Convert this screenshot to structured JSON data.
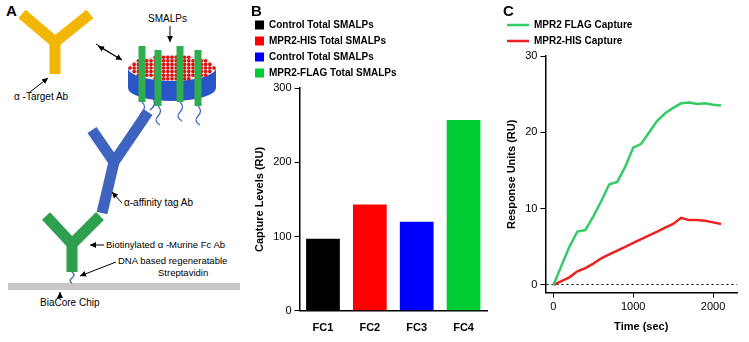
{
  "diagram": {
    "panel": "A",
    "labels": {
      "target_ab": "α -Target Ab",
      "smalps": "SMALPs",
      "affinity_ab": "α-affinity tag Ab",
      "murine_ab": "Biotinylated α -Murine Fc Ab",
      "streptavidin": [
        "DNA based regeneratable",
        "Streptavidin"
      ],
      "chip": "BiaCore Chip"
    }
  },
  "chart_data": [
    {
      "panel": "B",
      "type": "bar",
      "categories": [
        "FC1",
        "FC2",
        "FC3",
        "FC4"
      ],
      "series": [
        {
          "name": "Control Total SMALPs",
          "color": "#000000",
          "values": [
            97,
            null,
            null,
            null
          ]
        },
        {
          "name": "MPR2-HIS Total SMALPs",
          "color": "#ff0000",
          "values": [
            null,
            143,
            null,
            null
          ]
        },
        {
          "name": "Control Total SMALPs",
          "color": "#0000ff",
          "values": [
            null,
            null,
            120,
            null
          ]
        },
        {
          "name": "MPR2-FLAG Total SMALPs",
          "color": "#00cc33",
          "values": [
            null,
            null,
            null,
            257
          ]
        }
      ],
      "y_label": "Capture Levels (RU)",
      "ylim": [
        0,
        300
      ],
      "yticks": [
        0,
        100,
        200,
        300
      ],
      "grid": false,
      "legend": "top left"
    },
    {
      "panel": "C",
      "type": "line",
      "x": [
        0,
        100,
        200,
        300,
        400,
        500,
        600,
        700,
        800,
        900,
        1000,
        1100,
        1200,
        1300,
        1400,
        1500,
        1600,
        1700,
        1800,
        1900,
        2000,
        2100
      ],
      "series": [
        {
          "name": "MPR2 FLAG Capture",
          "color": "#33cc66",
          "values": [
            0,
            2.5,
            5,
            7,
            7.2,
            9,
            11,
            13.2,
            13.5,
            15.5,
            18,
            18.5,
            20,
            21.5,
            22.5,
            23.2,
            23.8,
            23.9,
            23.7,
            23.8,
            23.6,
            23.5
          ]
        },
        {
          "name": "MPR2-HIS Capture",
          "color": "#ee2222",
          "values": [
            0,
            0.5,
            1,
            1.8,
            2.2,
            2.8,
            3.5,
            4,
            4.5,
            5,
            5.5,
            6,
            6.5,
            7,
            7.5,
            8,
            8.8,
            8.5,
            8.5,
            8.4,
            8.2,
            8
          ]
        }
      ],
      "x_label": "Time (sec)",
      "y_label": "Response Units (RU)",
      "xlim": [
        -100,
        2300
      ],
      "xticks": [
        0,
        1000,
        2000
      ],
      "ylim": [
        -1,
        30
      ],
      "yticks": [
        0,
        10,
        20,
        30
      ],
      "grid": false,
      "legend": "top left"
    }
  ]
}
